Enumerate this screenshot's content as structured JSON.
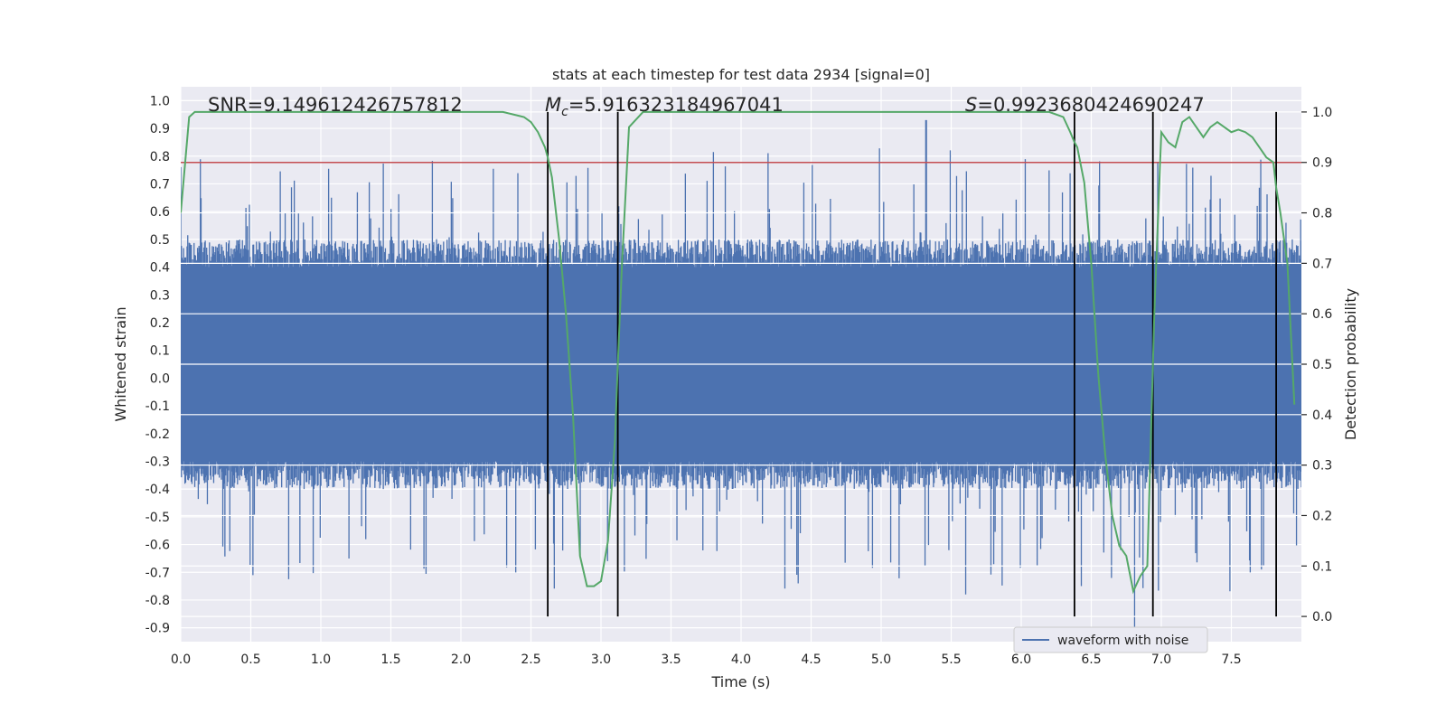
{
  "chart_data": {
    "type": "line",
    "title": "stats at each timestep for test data 2934 [signal=0]",
    "xlabel": "Time (s)",
    "ylabel": "Whitened strain",
    "y2label": "Detection probability",
    "xlim": [
      0.0,
      8.0
    ],
    "ylim": [
      -0.95,
      1.05
    ],
    "y2lim": [
      -0.05,
      1.05
    ],
    "x_ticks": [
      "0.0",
      "0.5",
      "1.0",
      "1.5",
      "2.0",
      "2.5",
      "3.0",
      "3.5",
      "4.0",
      "4.5",
      "5.0",
      "5.5",
      "6.0",
      "6.5",
      "7.0",
      "7.5"
    ],
    "y_ticks": [
      "1.0",
      "0.9",
      "0.8",
      "0.7",
      "0.6",
      "0.5",
      "0.4",
      "0.3",
      "0.2",
      "0.1",
      "0.0",
      "-0.1",
      "-0.2",
      "-0.3",
      "-0.4",
      "-0.5",
      "-0.6",
      "-0.7",
      "-0.8",
      "-0.9"
    ],
    "y2_ticks": [
      "1.0",
      "0.9",
      "0.8",
      "0.7",
      "0.6",
      "0.5",
      "0.4",
      "0.3",
      "0.2",
      "0.1",
      "0.0"
    ],
    "grid": true,
    "legend_position": "bottom-right",
    "annotations": {
      "snr": "SNR=9.149612426757812",
      "mc_symbol": "M",
      "mc_sub": "c",
      "mc_value": "=5.916323184967041",
      "s_symbol": "S",
      "s_value": "=0.9923680424690247"
    },
    "series": [
      {
        "name": "waveform with noise",
        "color": "#4c72b0",
        "axis": "left",
        "kind": "noise",
        "n_samples": 1600,
        "typical_envelope": [
          -0.33,
          0.43
        ],
        "max_peak": 0.93,
        "min_peak": -0.9
      },
      {
        "color": "#55a868",
        "axis": "right",
        "x": [
          0.0,
          0.06,
          0.1,
          0.15,
          0.2,
          0.3,
          0.5,
          0.7,
          1.0,
          1.5,
          2.0,
          2.3,
          2.45,
          2.5,
          2.55,
          2.6,
          2.62,
          2.65,
          2.7,
          2.75,
          2.8,
          2.85,
          2.9,
          2.95,
          3.0,
          3.05,
          3.1,
          3.12,
          3.15,
          3.2,
          3.3,
          3.5,
          4.0,
          4.5,
          5.0,
          5.5,
          6.0,
          6.2,
          6.3,
          6.35,
          6.38,
          6.4,
          6.45,
          6.5,
          6.55,
          6.6,
          6.65,
          6.7,
          6.75,
          6.8,
          6.85,
          6.9,
          6.92,
          6.95,
          7.0,
          7.05,
          7.1,
          7.15,
          7.2,
          7.25,
          7.3,
          7.35,
          7.4,
          7.45,
          7.5,
          7.55,
          7.6,
          7.65,
          7.7,
          7.75,
          7.8,
          7.82,
          7.85,
          7.9,
          7.95
        ],
        "y": [
          0.8,
          0.99,
          1.0,
          1.0,
          1.0,
          1.0,
          1.0,
          1.0,
          1.0,
          1.0,
          1.0,
          1.0,
          0.99,
          0.98,
          0.96,
          0.93,
          0.91,
          0.87,
          0.75,
          0.6,
          0.4,
          0.12,
          0.06,
          0.06,
          0.07,
          0.15,
          0.35,
          0.5,
          0.7,
          0.97,
          1.0,
          1.0,
          1.0,
          1.0,
          1.0,
          1.0,
          1.0,
          1.0,
          0.99,
          0.96,
          0.94,
          0.93,
          0.86,
          0.7,
          0.48,
          0.32,
          0.2,
          0.14,
          0.12,
          0.05,
          0.08,
          0.1,
          0.3,
          0.6,
          0.96,
          0.94,
          0.93,
          0.98,
          0.99,
          0.97,
          0.95,
          0.97,
          0.98,
          0.97,
          0.96,
          0.965,
          0.96,
          0.95,
          0.93,
          0.91,
          0.9,
          0.85,
          0.8,
          0.7,
          0.42
        ]
      }
    ],
    "threshold": {
      "color": "#c44e52",
      "y2": 0.9
    },
    "event_lines": {
      "color": "#000000",
      "x": [
        2.62,
        3.12,
        6.38,
        6.94,
        7.82
      ]
    }
  }
}
